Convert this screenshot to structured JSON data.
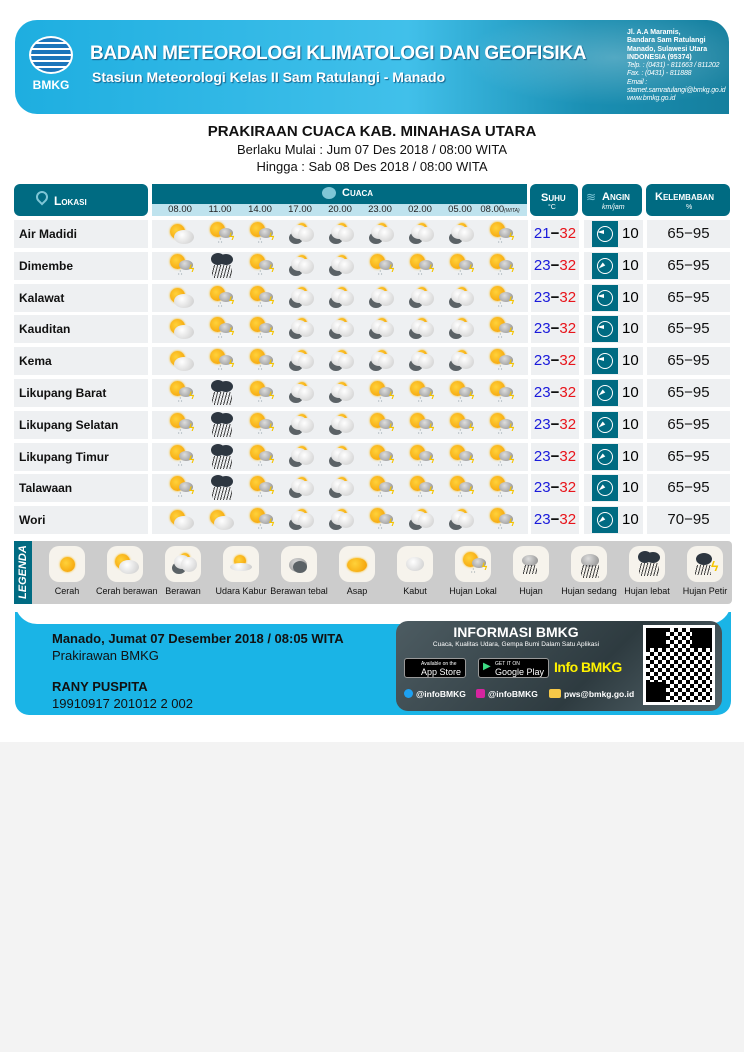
{
  "header": {
    "logo_text": "BMKG",
    "org": "BADAN METEOROLOGI KLIMATOLOGI DAN GEOFISIKA",
    "station": "Stasiun Meteorologi Kelas II Sam Ratulangi - Manado",
    "address": [
      "Jl. A.A Maramis,",
      "Bandara Sam Ratulangi",
      "Manado, Sulawesi Utara",
      "INDONESIA (95374)"
    ],
    "telp": "Telp.  : (0431) - 811663 / 811202",
    "fax": "Fax.   : (0431) - 811888",
    "email_label": "Email :",
    "email": "stamet.samratulangi@bmkg.go.id",
    "web": "www.bmkg.go.id"
  },
  "title": "PRAKIRAAN CUACA KAB. MINAHASA UTARA",
  "valid_from": "Berlaku Mulai : Jum 07 Des 2018 / 08:00 WITA",
  "valid_to": "Hingga : Sab 08 Des 2018 / 08:00 WITA",
  "columns": {
    "lokasi": "Lokasi",
    "cuaca": "Cuaca",
    "suhu": "Suhu",
    "suhu_unit": "°C",
    "angin": "Angin",
    "angin_unit": "km/jam",
    "kelembaban": "Kelembaban",
    "kelembaban_unit": "%",
    "times": [
      "08.00",
      "11.00",
      "14.00",
      "17.00",
      "20.00",
      "23.00",
      "02.00",
      "05.00",
      "08.00"
    ],
    "time_suffix": "(WITA)"
  },
  "colors": {
    "header": "#006b82",
    "min_temp": "#1a1adb",
    "max_temp": "#e8141b"
  },
  "rows": [
    {
      "name": "Air Madidi",
      "wx": [
        "cb",
        "hl",
        "hl",
        "b",
        "b",
        "b",
        "b",
        "b",
        "hl"
      ],
      "tmin": "21",
      "tmax": "32",
      "wind_dir": "W",
      "wind": "10",
      "hum": "65−95"
    },
    {
      "name": "Dimembe",
      "wx": [
        "hl",
        "hb",
        "hl",
        "b",
        "b",
        "hl",
        "hl",
        "hl",
        "hl"
      ],
      "tmin": "23",
      "tmax": "32",
      "wind_dir": "SW",
      "wind": "10",
      "hum": "65−95"
    },
    {
      "name": "Kalawat",
      "wx": [
        "cb",
        "hl",
        "hl",
        "b",
        "b",
        "b",
        "b",
        "b",
        "hl"
      ],
      "tmin": "23",
      "tmax": "32",
      "wind_dir": "W",
      "wind": "10",
      "hum": "65−95"
    },
    {
      "name": "Kauditan",
      "wx": [
        "cb",
        "hl",
        "hl",
        "b",
        "b",
        "b",
        "b",
        "b",
        "hl"
      ],
      "tmin": "23",
      "tmax": "32",
      "wind_dir": "W",
      "wind": "10",
      "hum": "65−95"
    },
    {
      "name": "Kema",
      "wx": [
        "cb",
        "hl",
        "hl",
        "b",
        "b",
        "b",
        "b",
        "b",
        "hl"
      ],
      "tmin": "23",
      "tmax": "32",
      "wind_dir": "W",
      "wind": "10",
      "hum": "65−95"
    },
    {
      "name": "Likupang Barat",
      "wx": [
        "hl",
        "hb",
        "hl",
        "b",
        "b",
        "hl",
        "hl",
        "hl",
        "hl"
      ],
      "tmin": "23",
      "tmax": "32",
      "wind_dir": "SW",
      "wind": "10",
      "hum": "65−95"
    },
    {
      "name": "Likupang Selatan",
      "wx": [
        "hl",
        "hb",
        "hl",
        "b",
        "b",
        "hl",
        "hl",
        "hl",
        "hl"
      ],
      "tmin": "23",
      "tmax": "32",
      "wind_dir": "SW",
      "wind": "10",
      "hum": "65−95"
    },
    {
      "name": "Likupang Timur",
      "wx": [
        "hl",
        "hb",
        "hl",
        "b",
        "b",
        "hl",
        "hl",
        "hl",
        "hl"
      ],
      "tmin": "23",
      "tmax": "32",
      "wind_dir": "SW",
      "wind": "10",
      "hum": "65−95"
    },
    {
      "name": "Talawaan",
      "wx": [
        "hl",
        "hb",
        "hl",
        "b",
        "b",
        "hl",
        "hl",
        "hl",
        "hl"
      ],
      "tmin": "23",
      "tmax": "32",
      "wind_dir": "SW",
      "wind": "10",
      "hum": "65−95"
    },
    {
      "name": "Wori",
      "wx": [
        "cb",
        "cb",
        "hl",
        "b",
        "b",
        "hl",
        "b",
        "b",
        "hl"
      ],
      "tmin": "23",
      "tmax": "32",
      "wind_dir": "SW",
      "wind": "10",
      "hum": "70−95"
    }
  ],
  "legend": {
    "title": "LEGENDA",
    "items": [
      {
        "code": "c",
        "label": "Cerah"
      },
      {
        "code": "cb",
        "label": "Cerah berawan"
      },
      {
        "code": "b",
        "label": "Berawan"
      },
      {
        "code": "uk",
        "label": "Udara Kabur"
      },
      {
        "code": "bt",
        "label": "Berawan tebal"
      },
      {
        "code": "as",
        "label": "Asap"
      },
      {
        "code": "kb",
        "label": "Kabut"
      },
      {
        "code": "hl",
        "label": "Hujan Lokal"
      },
      {
        "code": "h",
        "label": "Hujan"
      },
      {
        "code": "hs",
        "label": "Hujan sedang"
      },
      {
        "code": "hb",
        "label": "Hujan lebat"
      },
      {
        "code": "hp",
        "label": "Hujan Petir"
      }
    ]
  },
  "footer": {
    "date": "Manado, Jumat 07 Desember 2018 / 08:05 WITA",
    "role": "Prakirawan BMKG",
    "name": "RANY PUSPITA",
    "nip": "19910917 201012 2 002",
    "info_title": "INFORMASI BMKG",
    "info_sub": "Cuaca, Kualitas Udara, Gempa Bumi Dalam Satu Aplikasi",
    "appstore_small": "Available on the",
    "appstore": "App Store",
    "gplay_small": "GET IT ON",
    "gplay": "Google Play",
    "app_name": "Info BMKG",
    "twitter": "@infoBMKG",
    "instagram": "@infoBMKG",
    "email": "pws@bmkg.go.id"
  }
}
